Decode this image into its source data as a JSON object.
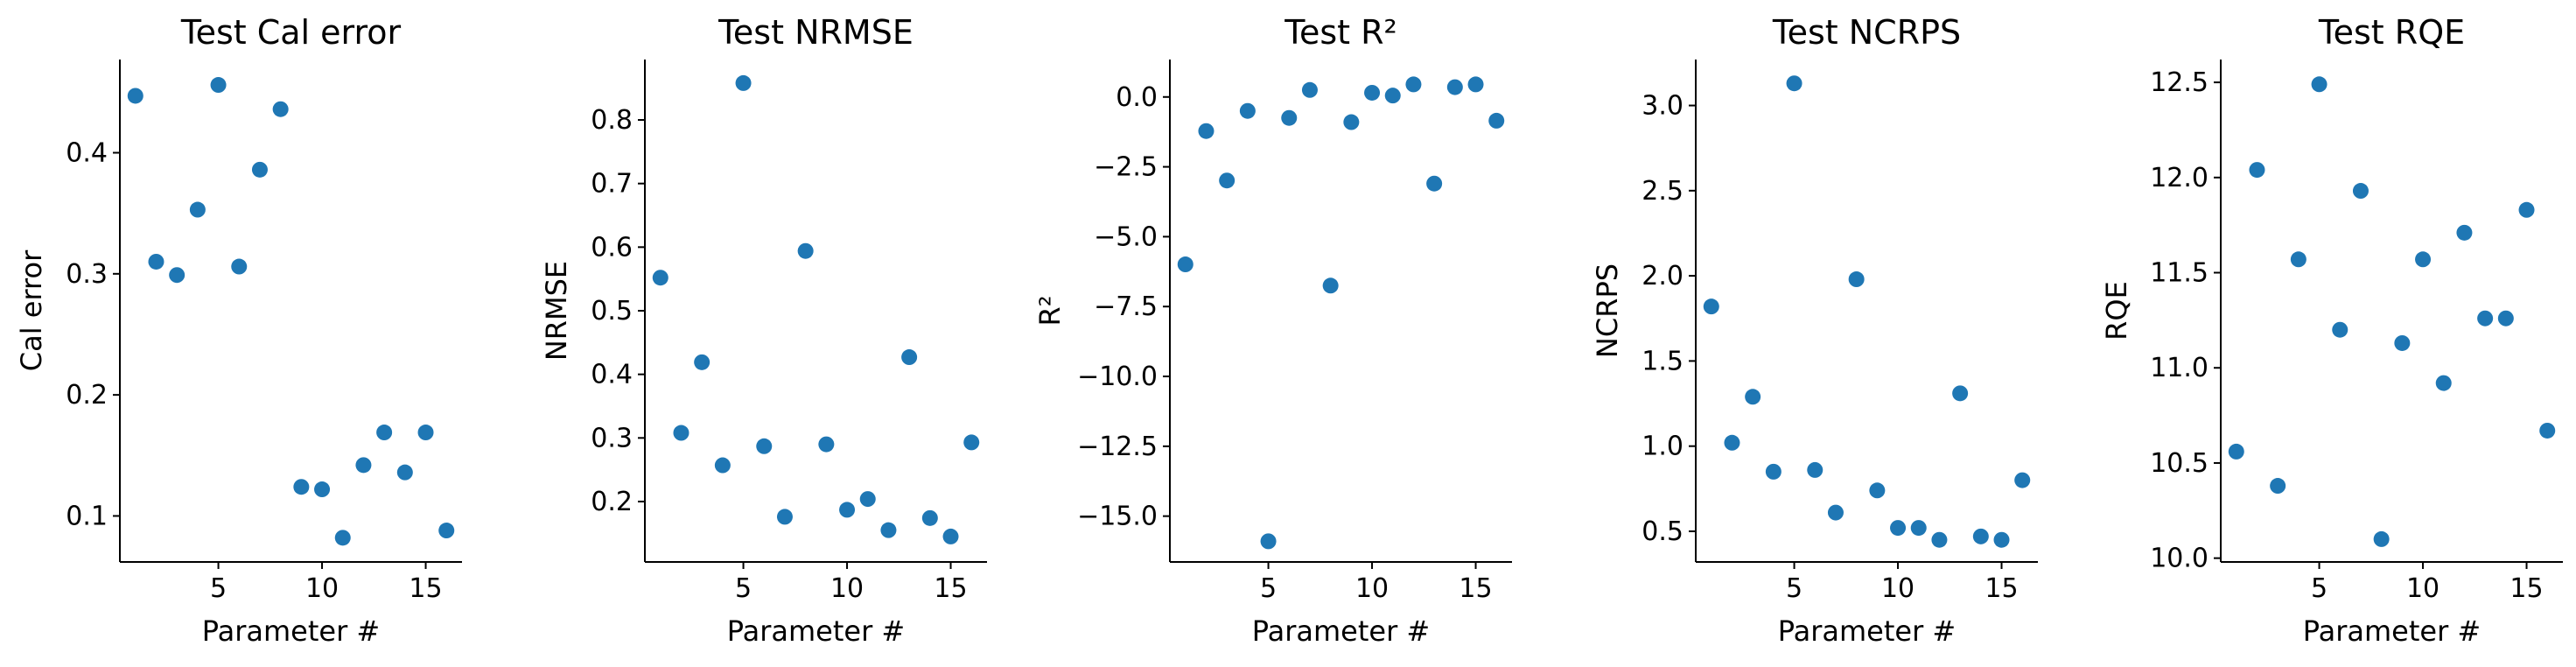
{
  "chart_data": [
    {
      "type": "scatter",
      "title": "Test Cal error",
      "xlabel": "Parameter #",
      "ylabel": "Cal error",
      "xlim": [
        0.25,
        16.75
      ],
      "ylim": [
        0.062,
        0.477
      ],
      "xticks": [
        5,
        10,
        15
      ],
      "xtick_labels": [
        "5",
        "10",
        "15"
      ],
      "yticks": [
        0.1,
        0.2,
        0.3,
        0.4
      ],
      "ytick_labels": [
        "0.1",
        "0.2",
        "0.3",
        "0.4"
      ],
      "x": [
        1,
        2,
        3,
        4,
        5,
        6,
        7,
        8,
        9,
        10,
        11,
        12,
        13,
        14,
        15,
        16
      ],
      "y": [
        0.447,
        0.31,
        0.299,
        0.353,
        0.456,
        0.306,
        0.386,
        0.436,
        0.124,
        0.122,
        0.082,
        0.142,
        0.169,
        0.136,
        0.169,
        0.088
      ],
      "color": "#1f77b4",
      "grid": false
    },
    {
      "type": "scatter",
      "title": "Test NRMSE",
      "xlabel": "Parameter #",
      "ylabel": "NRMSE",
      "xlim": [
        0.25,
        16.75
      ],
      "ylim": [
        0.105,
        0.895
      ],
      "xticks": [
        5,
        10,
        15
      ],
      "xtick_labels": [
        "5",
        "10",
        "15"
      ],
      "yticks": [
        0.2,
        0.3,
        0.4,
        0.5,
        0.6,
        0.7,
        0.8
      ],
      "ytick_labels": [
        "0.2",
        "0.3",
        "0.4",
        "0.5",
        "0.6",
        "0.7",
        "0.8"
      ],
      "x": [
        1,
        2,
        3,
        4,
        5,
        6,
        7,
        8,
        9,
        10,
        11,
        12,
        13,
        14,
        15,
        16
      ],
      "y": [
        0.552,
        0.308,
        0.419,
        0.257,
        0.858,
        0.287,
        0.176,
        0.594,
        0.29,
        0.187,
        0.204,
        0.155,
        0.427,
        0.174,
        0.145,
        0.293
      ],
      "color": "#1f77b4",
      "grid": false
    },
    {
      "type": "scatter",
      "title": "Test R²",
      "xlabel": "Parameter #",
      "ylabel": "R²",
      "xlim": [
        0.25,
        16.75
      ],
      "ylim": [
        -16.64,
        1.34
      ],
      "xticks": [
        5,
        10,
        15
      ],
      "xtick_labels": [
        "5",
        "10",
        "15"
      ],
      "yticks": [
        0.0,
        -2.5,
        -5.0,
        -7.5,
        -10.0,
        -12.5,
        -15.0
      ],
      "ytick_labels": [
        "0.0",
        "−2.5",
        "−5.0",
        "−7.5",
        "−10.0",
        "−12.5",
        "−15.0"
      ],
      "x": [
        1,
        2,
        3,
        4,
        5,
        6,
        7,
        8,
        9,
        10,
        11,
        12,
        13,
        14,
        15,
        16
      ],
      "y": [
        -5.99,
        -1.22,
        -2.99,
        -0.5,
        -15.9,
        -0.75,
        0.25,
        -6.75,
        -0.9,
        0.15,
        0.05,
        0.45,
        -3.1,
        0.35,
        0.45,
        -0.85
      ],
      "color": "#1f77b4",
      "grid": false
    },
    {
      "type": "scatter",
      "title": "Test NCRPS",
      "xlabel": "Parameter #",
      "ylabel": "NCRPS",
      "xlim": [
        0.25,
        16.75
      ],
      "ylim": [
        0.32,
        3.27
      ],
      "xticks": [
        5,
        10,
        15
      ],
      "xtick_labels": [
        "5",
        "10",
        "15"
      ],
      "yticks": [
        0.5,
        1.0,
        1.5,
        2.0,
        2.5,
        3.0
      ],
      "ytick_labels": [
        "0.5",
        "1.0",
        "1.5",
        "2.0",
        "2.5",
        "3.0"
      ],
      "x": [
        1,
        2,
        3,
        4,
        5,
        6,
        7,
        8,
        9,
        10,
        11,
        12,
        13,
        14,
        15,
        16
      ],
      "y": [
        1.82,
        1.02,
        1.29,
        0.85,
        3.13,
        0.86,
        0.61,
        1.98,
        0.74,
        0.52,
        0.52,
        0.45,
        1.31,
        0.47,
        0.45,
        0.8
      ],
      "color": "#1f77b4",
      "grid": false
    },
    {
      "type": "scatter",
      "title": "Test RQE",
      "xlabel": "Parameter #",
      "ylabel": "RQE",
      "xlim": [
        0.25,
        16.75
      ],
      "ylim": [
        9.98,
        12.62
      ],
      "xticks": [
        5,
        10,
        15
      ],
      "xtick_labels": [
        "5",
        "10",
        "15"
      ],
      "yticks": [
        10.0,
        10.5,
        11.0,
        11.5,
        12.0,
        12.5
      ],
      "ytick_labels": [
        "10.0",
        "10.5",
        "11.0",
        "11.5",
        "12.0",
        "12.5"
      ],
      "x": [
        1,
        2,
        3,
        4,
        5,
        6,
        7,
        8,
        9,
        10,
        11,
        12,
        13,
        14,
        15,
        16
      ],
      "y": [
        10.56,
        12.04,
        10.38,
        11.57,
        12.49,
        11.2,
        11.93,
        10.1,
        11.13,
        11.57,
        10.92,
        11.71,
        11.26,
        11.26,
        11.83,
        10.67
      ],
      "color": "#1f77b4",
      "grid": false
    }
  ]
}
